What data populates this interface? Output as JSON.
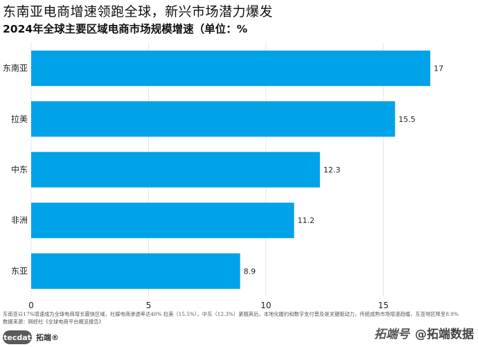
{
  "title": "东南亚电商增速领跑全球，新兴市场潜力爆发",
  "subtitle": "2024年全球主要区域电商市场规模增速（单位：%",
  "footnote": {
    "line1": "东南亚以17%增速成为全球电商增长最快区域，社媒电商渗透率达40%  拉美（15.5%），中东（12.3%）紧随其后，本地化履约和数字支付普及是关键驱动力，传统成熟市场增速趋缓，东亚地区降至8.9%",
    "line2": "数据来源：网经社《全球电商平台概览报告》"
  },
  "logos": {
    "tecdat": "tecdat",
    "tuoduan_small": "拓端®",
    "watermark_italic": "拓端号",
    "watermark_main": "@拓端数据"
  },
  "colors": {
    "bar": "#00A2E8",
    "grid": "#e5e5e5"
  },
  "chart_data": {
    "type": "bar",
    "orientation": "horizontal",
    "categories": [
      "东南亚",
      "拉美",
      "中东",
      "非洲",
      "东亚"
    ],
    "values": [
      17,
      15.5,
      12.3,
      11.2,
      8.9
    ],
    "data_labels": [
      "17",
      "15.5",
      "12.3",
      "11.2",
      "8.9"
    ],
    "xlim": [
      0,
      18
    ],
    "xticks": [
      0,
      5,
      10,
      15
    ],
    "grid": true
  }
}
